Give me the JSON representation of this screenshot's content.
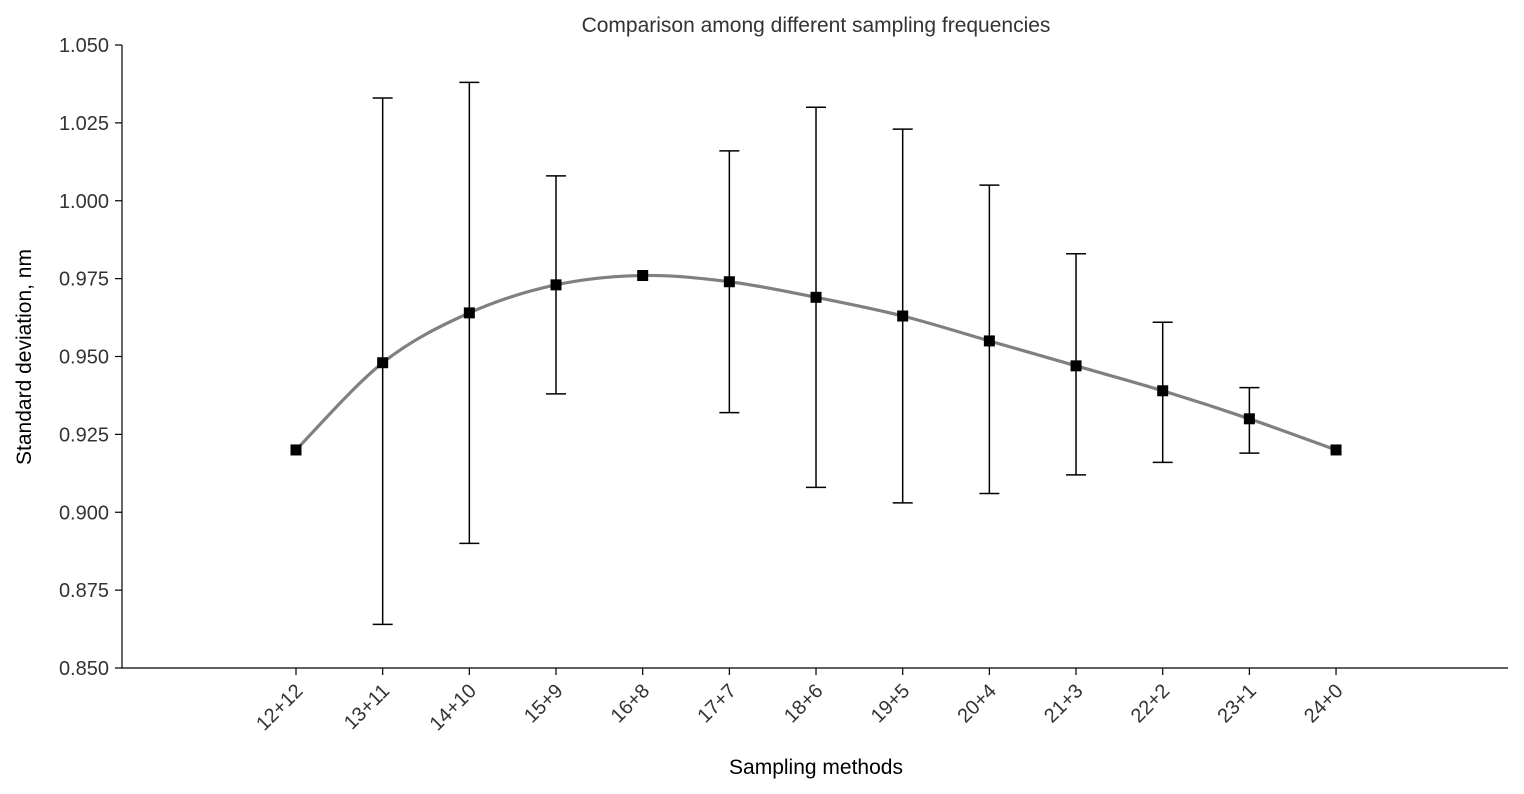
{
  "chart_data": {
    "type": "line",
    "title": "Comparison among different sampling frequencies",
    "xlabel": "Sampling methods",
    "ylabel": "Standard deviation, nm",
    "ylim": [
      0.85,
      1.05
    ],
    "yticks": [
      "0.850",
      "0.875",
      "0.900",
      "0.925",
      "0.950",
      "0.975",
      "1.000",
      "1.025",
      "1.050"
    ],
    "categories": [
      "12+12",
      "13+11",
      "14+10",
      "15+9",
      "16+8",
      "17+7",
      "18+6",
      "19+5",
      "20+4",
      "21+3",
      "22+2",
      "23+1",
      "24+0"
    ],
    "series": [
      {
        "values": [
          0.92,
          0.948,
          0.964,
          0.973,
          0.976,
          0.974,
          0.969,
          0.963,
          0.955,
          0.947,
          0.939,
          0.93,
          0.92
        ],
        "error_low": [
          null,
          0.864,
          0.89,
          0.938,
          null,
          0.932,
          0.908,
          0.903,
          0.906,
          0.912,
          0.916,
          0.919,
          null
        ],
        "error_high": [
          null,
          1.033,
          1.038,
          1.008,
          null,
          1.016,
          1.03,
          1.023,
          1.005,
          0.983,
          0.961,
          0.94,
          null
        ],
        "line_color": "#808080",
        "marker_color": "#000000",
        "marker": "square"
      }
    ],
    "grid": false,
    "legend": "none"
  }
}
